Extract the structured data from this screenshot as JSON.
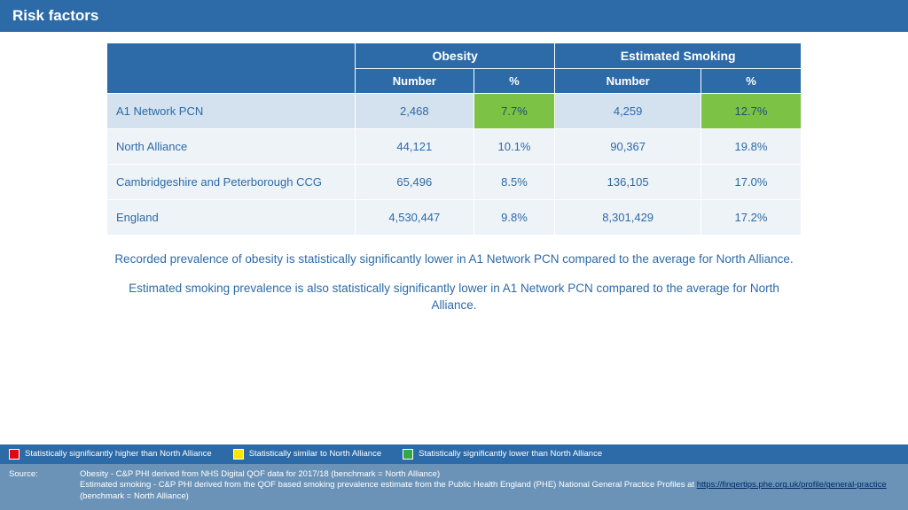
{
  "title": "Risk factors",
  "table": {
    "group_headers": [
      "Obesity",
      "Estimated Smoking"
    ],
    "sub_headers": [
      "Number",
      "%",
      "Number",
      "%"
    ],
    "rows": [
      {
        "label": "A1 Network PCN",
        "cells": [
          "2,468",
          "7.7%",
          "4,259",
          "12.7%"
        ],
        "highlight": [
          false,
          true,
          false,
          true
        ],
        "row_bg": "highlight"
      },
      {
        "label": "North Alliance",
        "cells": [
          "44,121",
          "10.1%",
          "90,367",
          "19.8%"
        ],
        "highlight": [
          false,
          false,
          false,
          false
        ],
        "row_bg": "plain"
      },
      {
        "label": "Cambridgeshire and Peterborough CCG",
        "cells": [
          "65,496",
          "8.5%",
          "136,105",
          "17.0%"
        ],
        "highlight": [
          false,
          false,
          false,
          false
        ],
        "row_bg": "plain"
      },
      {
        "label": "England",
        "cells": [
          "4,530,447",
          "9.8%",
          "8,301,429",
          "17.2%"
        ],
        "highlight": [
          false,
          false,
          false,
          false
        ],
        "row_bg": "plain"
      }
    ]
  },
  "commentary": {
    "p1": "Recorded prevalence of obesity is statistically significantly lower in A1 Network PCN compared to the average for North Alliance.",
    "p2": "Estimated smoking prevalence is also statistically significantly lower in A1 Network PCN compared to the average for North Alliance."
  },
  "legend": {
    "items": [
      {
        "color": "#e30613",
        "label": "Statistically significantly higher than North Alliance"
      },
      {
        "color": "#ffe600",
        "label": "Statistically similar to North Alliance"
      },
      {
        "color": "#35a845",
        "label": "Statistically significantly lower than North Alliance"
      }
    ]
  },
  "source": {
    "label": "Source:",
    "line1": "Obesity - C&P PHI derived from NHS Digital QOF data for 2017/18 (benchmark = North Alliance)",
    "line2a": "Estimated smoking - C&P PHI derived from the QOF based smoking prevalence estimate from the Public Health England (PHE) National General Practice Profiles at ",
    "link": "https://fingertips.phe.org.uk/profile/general-practice",
    "line2b": " (benchmark = North Alliance)"
  },
  "colors": {
    "brand": "#2c6aa8",
    "green_cell": "#7cc244",
    "row_highlight": "#d3e2ee",
    "row_plain": "#eef3f8",
    "footer_src": "#6b93b8"
  }
}
